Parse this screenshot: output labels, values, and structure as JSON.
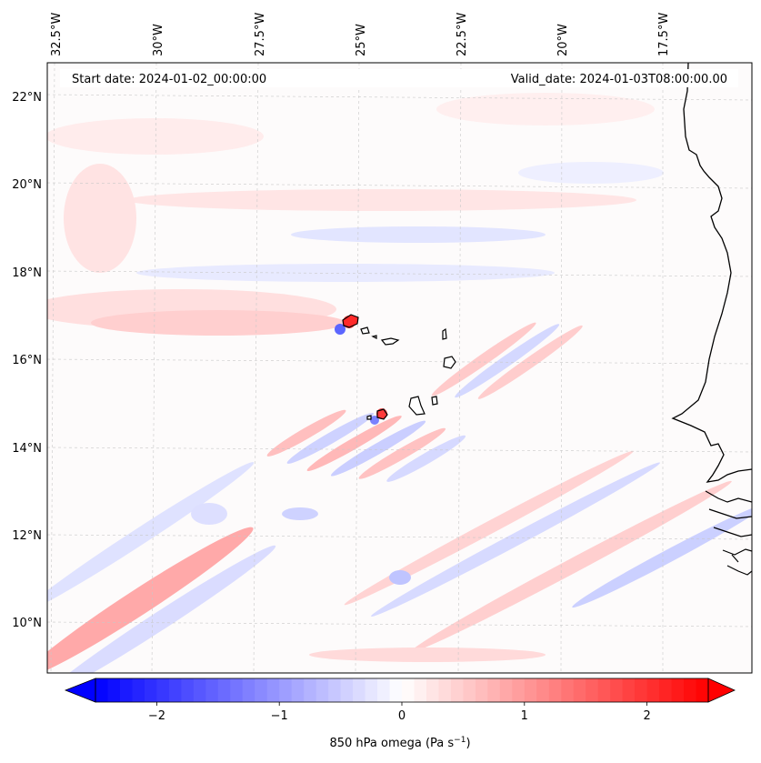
{
  "header": {
    "start_date": "Start date: 2024-01-02_00:00:00",
    "valid_date": "Valid_date: 2024-01-03T08:00:00.00"
  },
  "axes": {
    "lon_labels": [
      "32.5°W",
      "30°W",
      "27.5°W",
      "25°W",
      "22.5°W",
      "20°W",
      "17.5°W"
    ],
    "lat_labels": [
      "22°N",
      "20°N",
      "18°N",
      "16°N",
      "14°N",
      "12°N",
      "10°N"
    ],
    "lon_range": [
      -33.0,
      -16.5
    ],
    "lat_range": [
      8.9,
      22.8
    ],
    "gridlines": true
  },
  "colorbar": {
    "label": "850 hPa omega (Pa s",
    "label_sup": "−1",
    "label_end": ")",
    "ticks": [
      "−2",
      "−1",
      "0",
      "1",
      "2"
    ],
    "tick_values": [
      -2,
      -1,
      0,
      1,
      2
    ],
    "range": [
      -2.5,
      2.5
    ],
    "extend": "both",
    "cmap": "bwr"
  },
  "colors": {
    "negative": "#0000ff",
    "neutral": "#ffffff",
    "positive": "#ff0000",
    "coast": "#000000"
  }
}
